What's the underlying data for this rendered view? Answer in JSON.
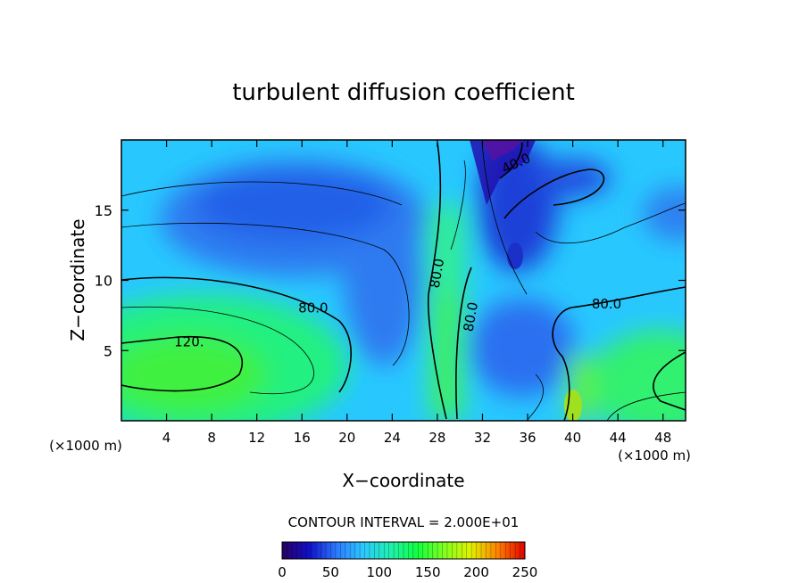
{
  "chart_data": {
    "type": "heatmap",
    "title": "turbulent diffusion coefficient",
    "xlabel": "X−coordinate",
    "ylabel": "Z−coordinate",
    "x_unit_left": "(×1000 m)",
    "x_unit_right": "(×1000 m)",
    "xlim": [
      0,
      50
    ],
    "ylim": [
      0,
      20
    ],
    "x_ticks": [
      4,
      8,
      12,
      16,
      20,
      24,
      28,
      32,
      36,
      40,
      44,
      48
    ],
    "y_ticks": [
      5,
      10,
      15
    ],
    "contour_interval_text": "CONTOUR INTERVAL = 2.000E+01",
    "colorbar": {
      "range": [
        0,
        250
      ],
      "ticks": [
        0,
        50,
        100,
        150,
        200,
        250
      ],
      "colormap": [
        "#2a0060",
        "#1010c8",
        "#2c78ff",
        "#2cc8ff",
        "#20f0b0",
        "#10ff40",
        "#80ff20",
        "#e0f000",
        "#ff8000",
        "#e00000"
      ]
    },
    "contour_labels": [
      {
        "text": "120.",
        "x": 6,
        "z": 5.6
      },
      {
        "text": "80.0",
        "x": 17,
        "z": 8.0
      },
      {
        "text": "80.0",
        "x": 28,
        "z": 10.5
      },
      {
        "text": "80.0",
        "x": 31,
        "z": 7.4
      },
      {
        "text": "80.0",
        "x": 43,
        "z": 8.3
      },
      {
        "text": "40.0",
        "x": 35,
        "z": 18.3
      }
    ]
  }
}
